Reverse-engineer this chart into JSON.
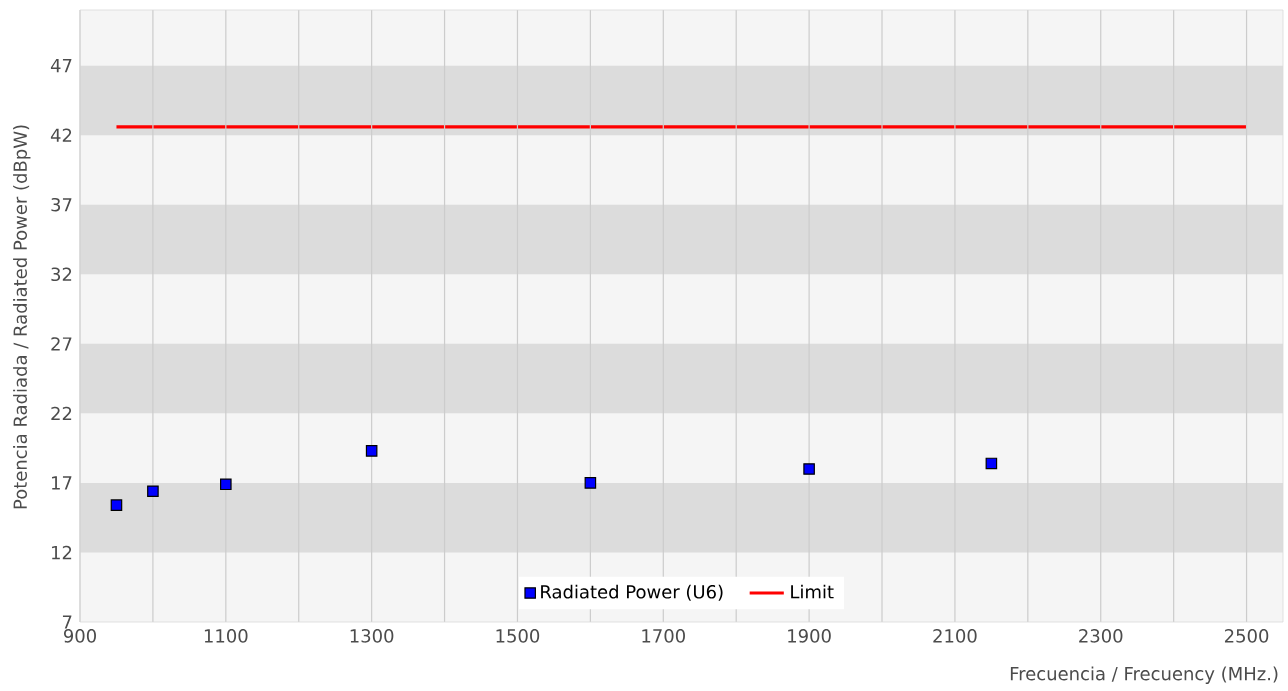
{
  "chart_data": {
    "type": "scatter",
    "xlabel": "Frecuencia / Frecuency (MHz.)",
    "ylabel": "Potencia Radiada / Radiated Power (dBpW)",
    "series": [
      {
        "name": "Radiated Power (U6)",
        "color": "#0000ff",
        "marker": "square",
        "x": [
          950,
          1000,
          1100,
          1300,
          1600,
          1900,
          2150
        ],
        "values": [
          15.4,
          16.4,
          16.9,
          19.3,
          17.0,
          18.0,
          18.4
        ]
      },
      {
        "name": "Limit",
        "type": "line",
        "color": "#ff0000",
        "marker": "none",
        "line_style": "solid",
        "x": [
          950,
          2500
        ],
        "values": [
          42.6,
          42.6
        ]
      }
    ],
    "xlim": [
      900,
      2550
    ],
    "ylim": [
      7,
      51
    ],
    "xticks": [
      900,
      {
        "value": 1000,
        "label": null
      },
      1100,
      {
        "value": 1200,
        "label": null
      },
      1300,
      {
        "value": 1400,
        "label": null
      },
      1500,
      {
        "value": 1600,
        "label": null
      },
      1700,
      {
        "value": 1800,
        "label": null
      },
      1900,
      {
        "value": 2000,
        "label": null
      },
      2100,
      {
        "value": 2200,
        "label": null
      },
      2300,
      {
        "value": 2400,
        "label": null
      },
      2500
    ],
    "yticks": [
      7,
      12,
      17,
      22,
      27,
      32,
      37,
      42,
      47
    ],
    "bands": [
      {
        "axis": "y",
        "from": 12,
        "to": 17,
        "color": "#dcdcdc"
      },
      {
        "axis": "y",
        "from": 22,
        "to": 27,
        "color": "#dcdcdc"
      },
      {
        "axis": "y",
        "from": 32,
        "to": 37,
        "color": "#dcdcdc"
      },
      {
        "axis": "y",
        "from": 42,
        "to": 47,
        "color": "#dcdcdc"
      }
    ],
    "grid": "x",
    "legend": "bottom"
  }
}
